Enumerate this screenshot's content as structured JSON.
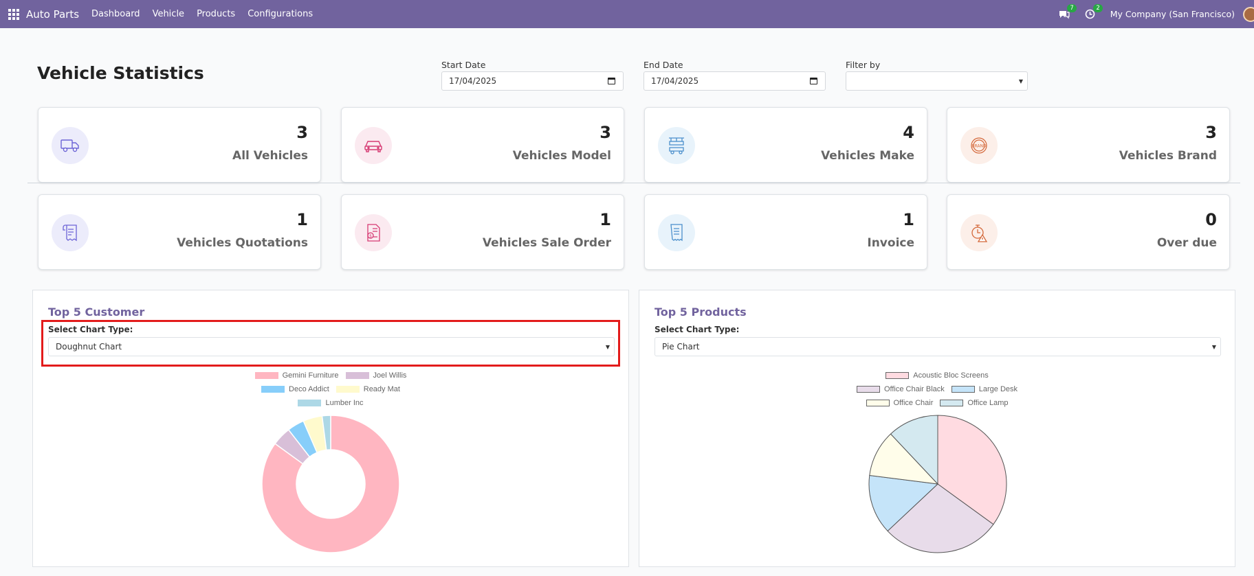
{
  "app": {
    "name": "Auto Parts",
    "nav": [
      "Dashboard",
      "Vehicle",
      "Products",
      "Configurations"
    ],
    "messages_badge": "7",
    "activities_badge": "2",
    "company": "My Company (San Francisco)"
  },
  "page": {
    "title": "Vehicle Statistics",
    "start_date_label": "Start Date",
    "start_date_value": "17/04/2025",
    "end_date_label": "End Date",
    "end_date_value": "17/04/2025",
    "filter_label": "Filter by",
    "filter_value": ""
  },
  "cards": [
    {
      "value": "3",
      "label": "All Vehicles",
      "icon": "truck-icon",
      "bg": "#ececfb",
      "color": "#6b63d6"
    },
    {
      "value": "3",
      "label": "Vehicles Model",
      "icon": "car-icon",
      "bg": "#fbeaf0",
      "color": "#d63a73"
    },
    {
      "value": "4",
      "label": "Vehicles Make",
      "icon": "assembly-icon",
      "bg": "#e8f3fb",
      "color": "#4a8fcc"
    },
    {
      "value": "3",
      "label": "Vehicles Brand",
      "icon": "brand-badge-icon",
      "bg": "#fcefe9",
      "color": "#d4683a"
    },
    {
      "value": "1",
      "label": "Vehicles Quotations",
      "icon": "quotation-icon",
      "bg": "#ececfb",
      "color": "#6b63d6"
    },
    {
      "value": "1",
      "label": "Vehicles Sale Order",
      "icon": "invoice-dollar-icon",
      "bg": "#fbeaf0",
      "color": "#d63a73"
    },
    {
      "value": "1",
      "label": "Invoice",
      "icon": "receipt-icon",
      "bg": "#e8f3fb",
      "color": "#4a8fcc"
    },
    {
      "value": "0",
      "label": "Over due",
      "icon": "clock-warning-icon",
      "bg": "#fcefe9",
      "color": "#d4683a"
    }
  ],
  "customers_panel": {
    "title": "Top 5 Customer",
    "select_label": "Select Chart Type:",
    "select_value": "Doughnut Chart"
  },
  "products_panel": {
    "title": "Top 5 Products",
    "select_label": "Select Chart Type:",
    "select_value": "Pie Chart"
  },
  "chart_data": [
    {
      "type": "pie",
      "variant": "doughnut",
      "categories": [
        "Gemini Furniture",
        "Joel Willis",
        "Deco Addict",
        "Ready Mat",
        "Lumber Inc"
      ],
      "values": [
        85,
        4.5,
        4,
        4.5,
        2
      ],
      "colors": [
        "#ffb6c1",
        "#d8bfd8",
        "#87cefa",
        "#fffacd",
        "#add8e6"
      ],
      "legend": "top"
    },
    {
      "type": "pie",
      "categories": [
        "Acoustic Bloc Screens",
        "Office Chair Black",
        "Large Desk",
        "Office Chair",
        "Office Lamp"
      ],
      "values": [
        35,
        28,
        14,
        11,
        12
      ],
      "colors": [
        "#ffdbe1",
        "#e8dcea",
        "#c5e4f9",
        "#fffdea",
        "#d4e9f0"
      ],
      "legend": "top"
    }
  ]
}
